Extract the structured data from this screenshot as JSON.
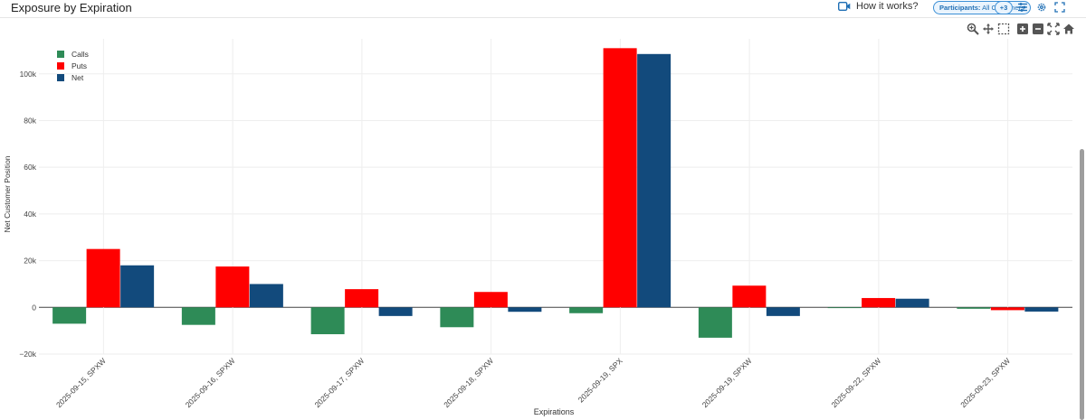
{
  "header": {
    "title": "Exposure by Expiration",
    "how_it_works": "How it works?",
    "participants_prefix": "Participants:",
    "participants_value": "All Customers",
    "plus_badge": "+3"
  },
  "icons": [
    "video-icon",
    "filter-lines-icon",
    "gear-icon",
    "fullscreen-icon",
    "zoom-icon",
    "pan-icon",
    "box-select-icon",
    "zoom-in-icon",
    "zoom-out-icon",
    "autoscale-icon",
    "home-icon"
  ],
  "colors": {
    "calls": "#2e8b57",
    "puts": "#ff0000",
    "net": "#124a7c",
    "accent": "#1f6fb5"
  },
  "chart_data": {
    "type": "bar",
    "xlabel": "Expirations",
    "ylabel": "Net Customer Position",
    "categories": [
      "2025-09-15, SPXW",
      "2025-09-16, SPXW",
      "2025-09-17, SPXW",
      "2025-09-18, SPXW",
      "2025-09-19, SPX",
      "2025-09-19, SPXW",
      "2025-09-22, SPXW",
      "2025-09-23, SPXW"
    ],
    "series": [
      {
        "name": "Calls",
        "values": [
          -7000,
          -7500,
          -11500,
          -8500,
          -2500,
          -13000,
          -300,
          -600
        ]
      },
      {
        "name": "Puts",
        "values": [
          25000,
          17500,
          7800,
          6600,
          111000,
          9300,
          4000,
          -1200
        ]
      },
      {
        "name": "Net",
        "values": [
          18000,
          10000,
          -3700,
          -1900,
          108500,
          -3700,
          3700,
          -1800
        ]
      }
    ],
    "yticks": [
      -20000,
      0,
      20000,
      40000,
      60000,
      80000,
      100000
    ],
    "ytick_labels": [
      "−20k",
      "0",
      "20k",
      "40k",
      "60k",
      "80k",
      "100k"
    ],
    "ylim": [
      -20000,
      115000
    ],
    "grid": true,
    "legend_position": "top-left"
  }
}
